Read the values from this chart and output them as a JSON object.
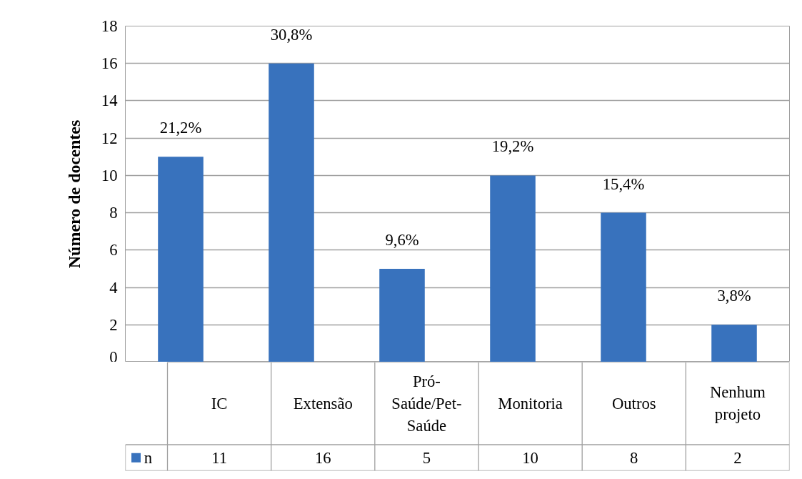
{
  "chart_data": {
    "type": "bar",
    "ylabel": "Número de docentes",
    "categories": [
      "IC",
      "Extensão",
      "Pró-Saúde/Pet-Saúde",
      "Monitoria",
      "Outros",
      "Nenhum projeto"
    ],
    "series": [
      {
        "name": "n",
        "color": "#3872bd",
        "values": [
          11,
          16,
          5,
          10,
          8,
          2
        ]
      }
    ],
    "annotations": [
      "21,2%",
      "30,8%",
      "9,6%",
      "19,2%",
      "15,4%",
      "3,8%"
    ],
    "ylim": [
      0,
      18
    ],
    "yticks": [
      0,
      2,
      4,
      6,
      8,
      10,
      12,
      14,
      16,
      18
    ],
    "grid": "y",
    "legend": "bottom",
    "data_labels": true
  }
}
